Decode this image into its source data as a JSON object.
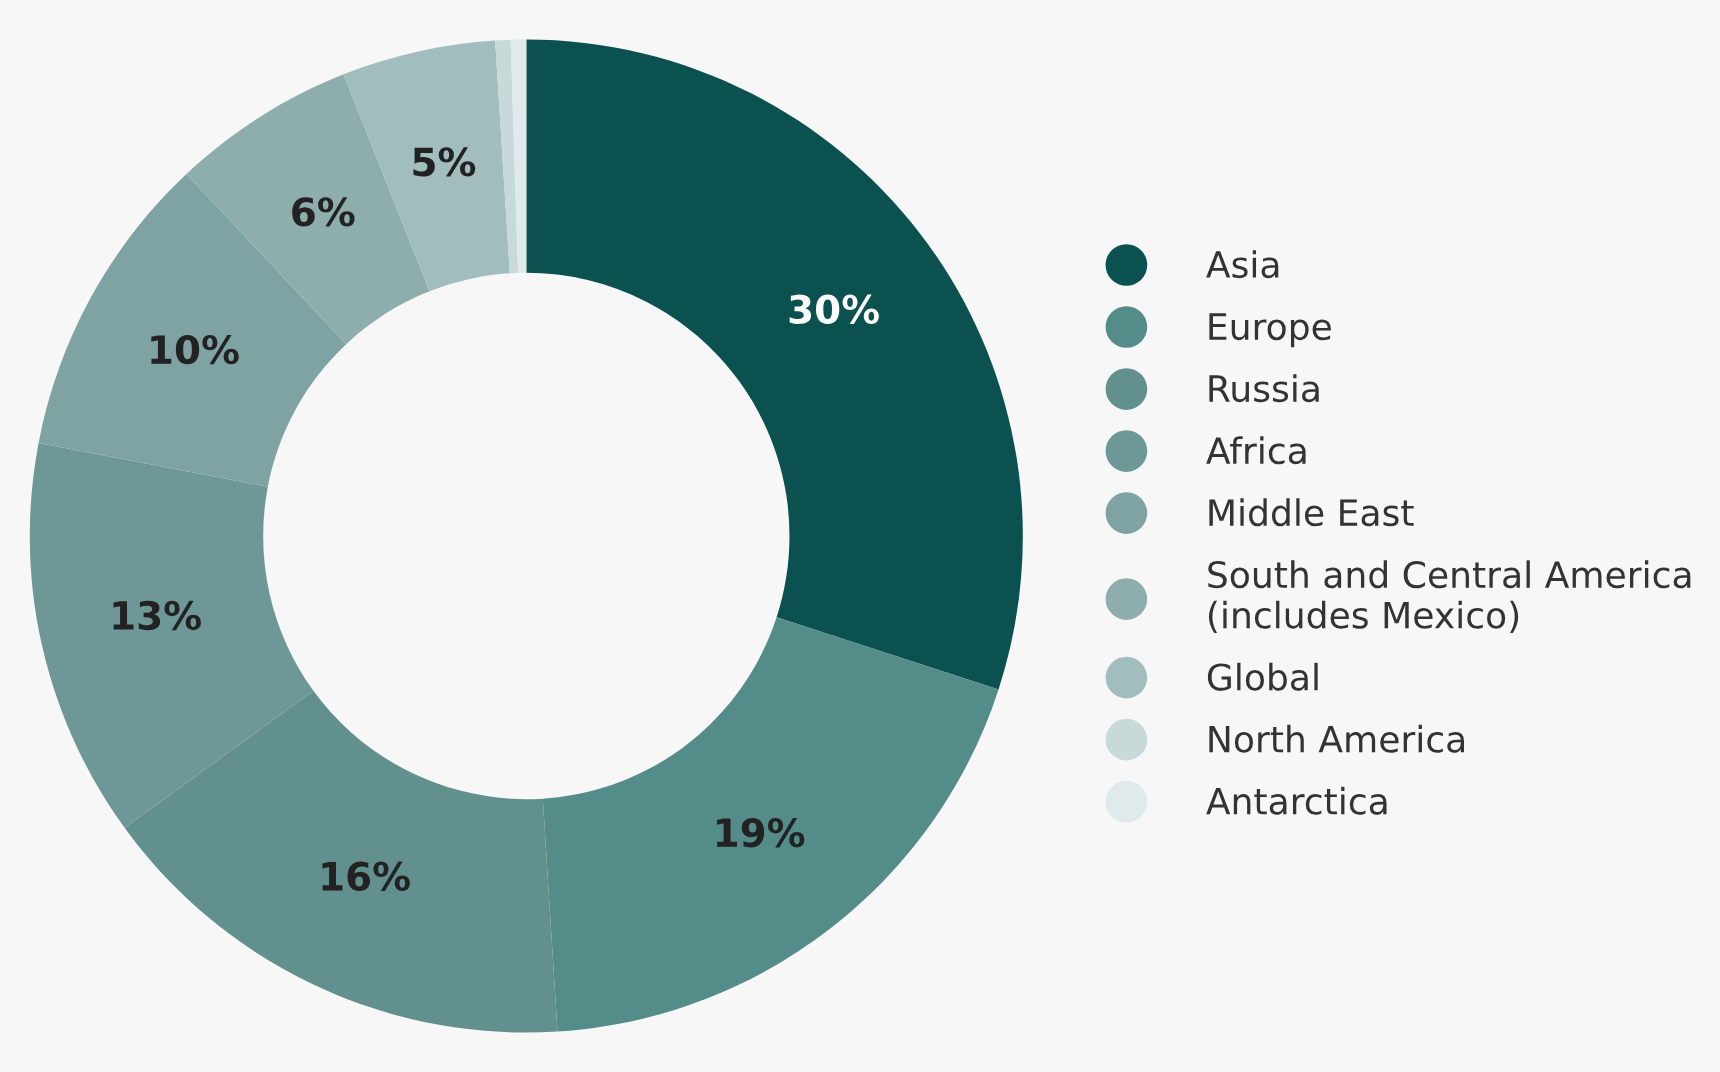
{
  "chart_data": {
    "type": "donut",
    "categories": [
      "Asia",
      "Europe",
      "Russia",
      "Africa",
      "Middle East",
      "South and Central America\n(includes Mexico)",
      "Global",
      "North America",
      "Antarctica"
    ],
    "values": [
      30,
      19,
      16,
      13,
      10,
      6,
      5,
      0.5,
      0.5
    ],
    "value_labels": [
      "30%",
      "19%",
      "16%",
      "13%",
      "10%",
      "6%",
      "5%",
      null,
      null
    ],
    "colors": [
      "#0b5150",
      "#548c8a",
      "#62908f",
      "#6e9897",
      "#7fa3a3",
      "#8eaeae",
      "#a1bdbd",
      "#c8d9da",
      "#e0eaeb"
    ],
    "legend": "right"
  }
}
